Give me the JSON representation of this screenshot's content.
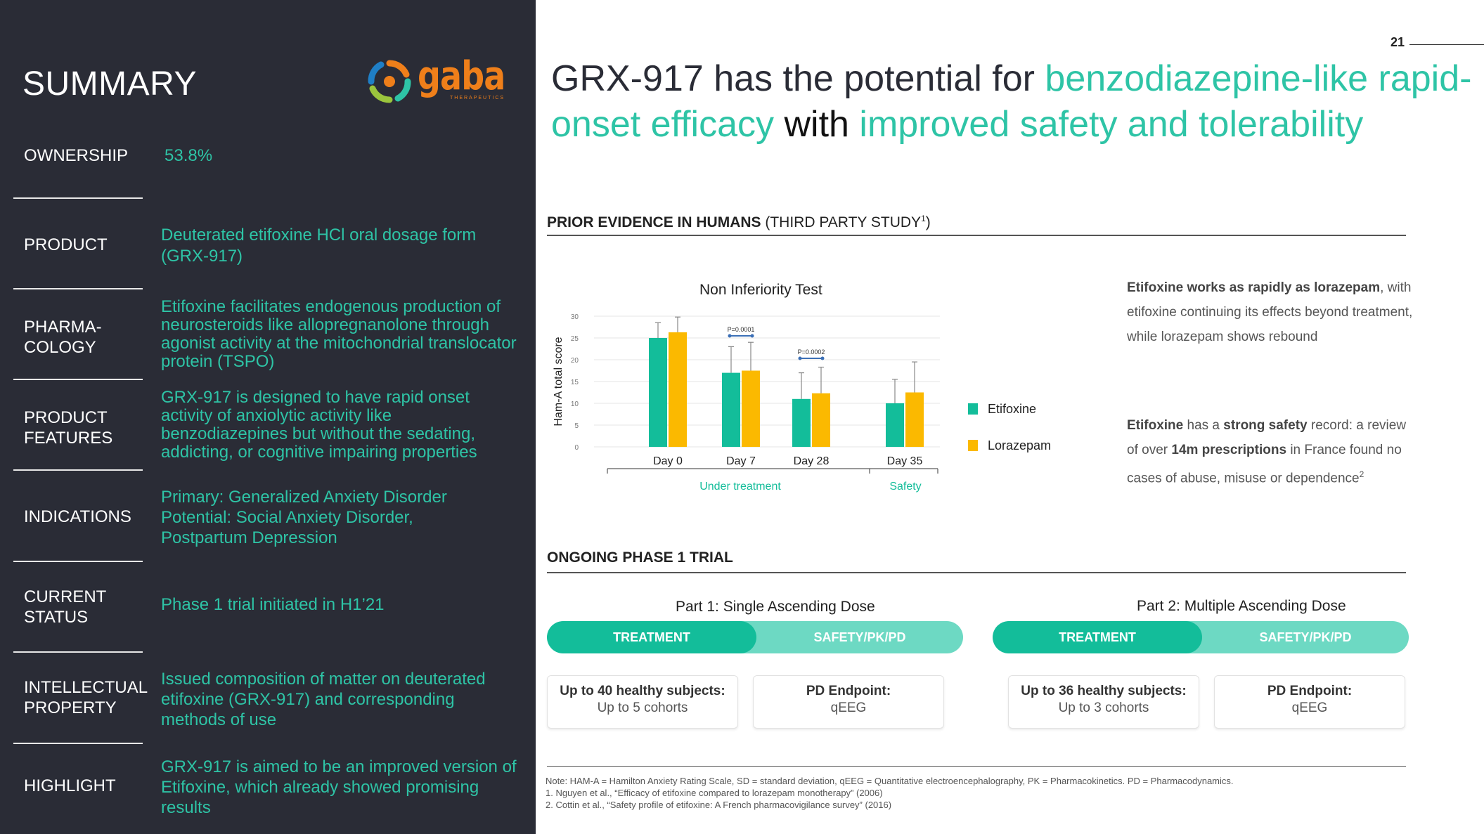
{
  "summary": {
    "title": "SUMMARY",
    "logo_word": "gaba",
    "logo_sub": "THERAPEUTICS",
    "rows": [
      {
        "label": "OWNERSHIP",
        "value": "53.8%"
      },
      {
        "label": "PRODUCT",
        "value": "Deuterated etifoxine HCl oral dosage form\n(GRX-917)"
      },
      {
        "label": "PHARMA-\nCOLOGY",
        "value": "Etifoxine facilitates endogenous production of\nneurosteroids like allopregnanolone through\nagonist activity at the mitochondrial translocator\nprotein (TSPO)"
      },
      {
        "label": "PRODUCT\nFEATURES",
        "value": "GRX-917 is designed to have rapid onset\nactivity of anxiolytic activity like\nbenzodiazepines but without the sedating,\naddicting, or cognitive impairing properties"
      },
      {
        "label": "INDICATIONS",
        "value": "Primary: Generalized Anxiety Disorder\nPotential: Social Anxiety Disorder,\nPostpartum Depression"
      },
      {
        "label": "CURRENT\nSTATUS",
        "value": "Phase 1 trial initiated in H1’21"
      },
      {
        "label": "INTELLECTUAL\nPROPERTY",
        "value": "Issued composition of matter on deuterated\netifoxine (GRX-917) and corresponding\nmethods of use"
      },
      {
        "label": "HIGHLIGHT",
        "value": "GRX-917 is aimed to be an improved version of\nEtifoxine, which already showed promising\nresults"
      }
    ]
  },
  "page_number": "21",
  "headline": {
    "part1": "GRX-917 has the potential for ",
    "part2": "benzodiazepine-like rapid-onset efficacy",
    "part3": " with ",
    "part4": "improved safety and tolerability"
  },
  "prior_evidence": {
    "title_bold": "PRIOR EVIDENCE IN HUMANS",
    "title_normal": " (THIRD PARTY STUDY",
    "title_sup": "1",
    "title_close": ")",
    "text1_bold": "Etifoxine works as rapidly as lorazepam",
    "text1_rest": ", with etifoxine continuing its effects beyond treatment, while lorazepam shows rebound",
    "text2_bold1": "Etifoxine",
    "text2_mid1": " has a ",
    "text2_bold2": "strong safety",
    "text2_mid2": " record: a review of over ",
    "text2_bold3": "14m prescriptions",
    "text2_rest": " in France found no cases of abuse, misuse or dependence",
    "text2_sup": "2"
  },
  "chart_data": {
    "type": "bar",
    "title": "Non Inferiority Test",
    "ylabel": "Ham-A total score",
    "ylim": [
      0,
      30
    ],
    "yticks": [
      "0",
      "5",
      "10",
      "15",
      "20",
      "25",
      "30"
    ],
    "categories": [
      "Day 0",
      "Day 7",
      "Day 28",
      "Day 35"
    ],
    "series": [
      {
        "name": "Etifoxine",
        "color": "#13bd9a",
        "values": [
          25,
          17,
          11,
          10
        ],
        "errors": [
          3.5,
          6,
          6,
          5.5
        ]
      },
      {
        "name": "Lorazepam",
        "color": "#fbb900",
        "values": [
          26.3,
          17.5,
          12.3,
          12.5
        ],
        "errors": [
          3.5,
          6.5,
          6,
          7
        ]
      }
    ],
    "annotations": [
      {
        "text": "P=0.0001",
        "between": "Day 7"
      },
      {
        "text": "P=0.0002",
        "between": "Day 28"
      }
    ],
    "groups": [
      {
        "label": "Under treatment",
        "color": "#13bd9a"
      },
      {
        "label": "Safety",
        "color": "#13bd9a"
      }
    ],
    "legend_placement": "right",
    "grid": true
  },
  "ongoing": {
    "title": "ONGOING PHASE 1 TRIAL",
    "parts": [
      {
        "title": "Part 1: Single Ascending Dose",
        "treatment_label": "TREATMENT",
        "safety_label": "SAFETY/PK/PD",
        "card1_title": "Up to 40 healthy subjects:",
        "card1_sub": "Up to 5 cohorts",
        "card2_title": "PD Endpoint:",
        "card2_sub": "qEEG"
      },
      {
        "title": "Part 2: Multiple Ascending Dose",
        "treatment_label": "TREATMENT",
        "safety_label": "SAFETY/PK/PD",
        "card1_title": "Up to 36 healthy subjects:",
        "card1_sub": "Up to 3 cohorts",
        "card2_title": "PD Endpoint:",
        "card2_sub": "qEEG"
      }
    ]
  },
  "notes": {
    "line1": "Note: HAM-A = Hamilton Anxiety Rating Scale, SD = standard deviation, qEEG = Quantitative electroencephalography, PK = Pharmacokinetics. PD = Pharmacodynamics.",
    "line2": "1.   Nguyen et al., “Efficacy of etifoxine compared to lorazepam monotherapy” (2006)",
    "line3": "2.   Cottin et al., “Safety profile of etifoxine: A French pharmacovigilance survey” (2016)"
  },
  "colors": {
    "panel_bg": "#2a2c36",
    "accent_green": "#2ec4a6",
    "bar_green": "#13bd9a",
    "bar_yellow": "#fbb900",
    "pill_light": "#6dd9c3",
    "logo_orange": "#ef7f1a"
  }
}
